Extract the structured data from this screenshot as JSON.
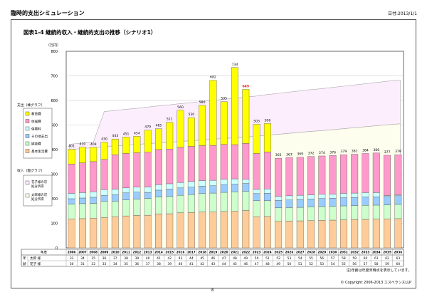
{
  "header": {
    "app_title": "臨時的支出シミュレーション",
    "date": "日付:2013/1/1",
    "figure_title": "図表1-4  継続的収入・継続的支出の推移（シナリオ1）",
    "page_number": "8"
  },
  "footer": {
    "note": "注)年齢は年度末時点を表示しています。",
    "copyright": "© Copyright 2006-2013 エスペランスLLP"
  },
  "table": {
    "header_label": "年度",
    "age_label": "年齢",
    "rows": [
      {
        "label": "太郎 様",
        "values": [
          33,
          34,
          35,
          36,
          37,
          38,
          39,
          40,
          41,
          42,
          43,
          44,
          45,
          46,
          47,
          48,
          49,
          50,
          51,
          52,
          53,
          54,
          55,
          56,
          57,
          58,
          59,
          60,
          61,
          62,
          63
        ]
      },
      {
        "label": "花子 様",
        "values": [
          30,
          31,
          32,
          33,
          34,
          35,
          36,
          37,
          38,
          39,
          40,
          41,
          42,
          43,
          44,
          45,
          46,
          47,
          48,
          49,
          50,
          51,
          52,
          53,
          54,
          55,
          56,
          57,
          58,
          59,
          60
        ]
      }
    ]
  },
  "legend": {
    "expense_title": "支出（棒グラフ）",
    "expense_items": [
      {
        "label": "教育費",
        "color": "#ffff00"
      },
      {
        "label": "住居費",
        "color": "#ff99cc"
      },
      {
        "label": "保険料",
        "color": "#ccffff"
      },
      {
        "label": "その他支出",
        "color": "#99ccff"
      },
      {
        "label": "娯楽費",
        "color": "#ccffcc"
      },
      {
        "label": "基本生活費",
        "color": "#ffcc99"
      }
    ],
    "income_title": "収入（面グラフ）",
    "income_items": [
      {
        "label": "花子様の可処分所得",
        "color": "#fdeefe"
      },
      {
        "label": "太郎様の可処分所得",
        "color": "#fefeee"
      }
    ]
  },
  "chart_data": {
    "type": "bar",
    "title": "図表1-4  継続的収入・継続的支出の推移（シナリオ1）",
    "ylabel": "（万円）",
    "ylim": [
      0,
      800
    ],
    "yticks": [
      0,
      100,
      200,
      300,
      400,
      500,
      600,
      700,
      800
    ],
    "categories": [
      "2006",
      "2007",
      "2008",
      "2009",
      "2010",
      "2011",
      "2012",
      "2013",
      "2014",
      "2015",
      "2016",
      "2017",
      "2018",
      "2019",
      "2020",
      "2021",
      "2022",
      "2023",
      "2024",
      "2025",
      "2026",
      "2027",
      "2028",
      "2029",
      "2030",
      "2031",
      "2032",
      "2033",
      "2034",
      "2035",
      "2036"
    ],
    "totals": [
      401,
      410,
      409,
      430,
      443,
      451,
      454,
      479,
      485,
      511,
      560,
      530,
      580,
      682,
      595,
      734,
      645,
      503,
      506,
      365,
      367,
      369,
      372,
      374,
      376,
      379,
      381,
      384,
      386,
      377,
      379
    ],
    "highlight_total_index": 16,
    "highlight_color": "#ff0000",
    "series": [
      {
        "name": "基本生活費",
        "values": [
          118,
          119,
          121,
          124,
          127,
          130,
          132,
          133,
          138,
          139,
          143,
          144,
          146,
          146,
          148,
          150,
          152,
          127,
          128,
          108,
          109,
          110,
          111,
          112,
          113,
          114,
          115,
          116,
          117,
          118,
          119
        ]
      },
      {
        "name": "娯楽費",
        "values": [
          60,
          61,
          60,
          65,
          63,
          65,
          66,
          68,
          69,
          70,
          71,
          73,
          75,
          77,
          78,
          78,
          78,
          65,
          64,
          55,
          55,
          55,
          56,
          56,
          56,
          57,
          57,
          57,
          57,
          57,
          58
        ]
      },
      {
        "name": "その他支出",
        "values": [
          22,
          23,
          25,
          25,
          26,
          29,
          29,
          25,
          28,
          30,
          30,
          30,
          30,
          30,
          31,
          31,
          32,
          29,
          30,
          30,
          31,
          32,
          32,
          33,
          33,
          33,
          33,
          34,
          34,
          34,
          35
        ]
      },
      {
        "name": "保険料",
        "values": [
          22,
          22,
          22,
          23,
          23,
          20,
          20,
          21,
          22,
          22,
          22,
          23,
          23,
          22,
          22,
          22,
          17,
          17,
          18,
          17,
          17,
          17,
          17,
          17,
          17,
          18,
          18,
          18,
          17,
          4,
          3
        ]
      },
      {
        "name": "住居費",
        "values": [
          119,
          121,
          123,
          123,
          140,
          140,
          140,
          142,
          143,
          141,
          143,
          143,
          142,
          142,
          142,
          139,
          146,
          146,
          150,
          155,
          155,
          155,
          156,
          156,
          157,
          157,
          158,
          159,
          161,
          164,
          164
        ]
      },
      {
        "name": "教育費",
        "values": [
          60,
          64,
          58,
          70,
          64,
          67,
          67,
          90,
          85,
          109,
          151,
          117,
          164,
          265,
          174,
          314,
          220,
          119,
          116,
          0,
          0,
          0,
          0,
          0,
          0,
          0,
          0,
          0,
          0,
          0,
          0
        ]
      }
    ],
    "area_series": [
      {
        "name": "太郎様の可処分所得",
        "values": [
          400,
          404,
          408,
          412,
          415,
          418,
          421,
          424,
          427,
          430,
          433,
          436,
          439,
          442,
          445,
          448,
          451,
          454,
          459,
          462,
          466,
          470,
          474,
          477,
          481,
          485,
          489,
          493,
          497,
          501,
          505
        ]
      },
      {
        "name": "花子様の可処分所得",
        "values": [
          22,
          22,
          22,
          143,
          144,
          146,
          147,
          149,
          151,
          152,
          154,
          155,
          157,
          158,
          160,
          161,
          163,
          164,
          165,
          167,
          168,
          169,
          170,
          171,
          172,
          173,
          174,
          175,
          176,
          177,
          178
        ]
      }
    ],
    "grid": true
  }
}
